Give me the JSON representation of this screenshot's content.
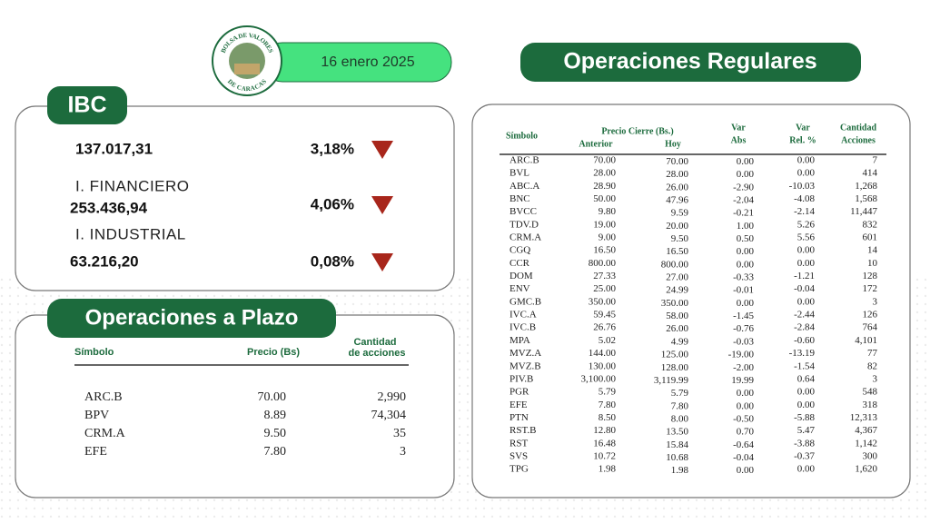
{
  "logo": {
    "top": "BOLSA DE VALORES",
    "bottom": "DE CARACAS"
  },
  "date": "16 enero 2025",
  "ibc": {
    "title": "IBC",
    "rows": [
      {
        "value": "137.017,31",
        "change": "3,18%"
      },
      {
        "label": "I. FINANCIERO",
        "value": "253.436,94",
        "change": "4,06%"
      },
      {
        "label": "I. INDUSTRIAL",
        "value": "63.216,20",
        "change": "0,08%"
      }
    ]
  },
  "plazo": {
    "title": "Operaciones a Plazo",
    "headers": [
      "Símbolo",
      "Precio (Bs)",
      "Cantidad",
      "de acciones"
    ],
    "rows": [
      [
        "ARC.B",
        "70.00",
        "2,990"
      ],
      [
        "BPV",
        "8.89",
        "74,304"
      ],
      [
        "CRM.A",
        "9.50",
        "35"
      ],
      [
        "EFE",
        "7.80",
        "3"
      ]
    ]
  },
  "regulares": {
    "title": "Operaciones Regulares",
    "headers": {
      "symbol": "Símbolo",
      "price": "Precio Cierre (Bs.)",
      "prev": "Anterior",
      "today": "Hoy",
      "abs": [
        "Var",
        "Abs"
      ],
      "rel": [
        "Var",
        "Rel. %"
      ],
      "qty": [
        "Cantidad",
        "Acciones"
      ]
    },
    "rows": [
      [
        "ARC.B",
        "70.00",
        "70.00",
        "0.00",
        "0.00",
        "7"
      ],
      [
        "BVL",
        "28.00",
        "28.00",
        "0.00",
        "0.00",
        "414"
      ],
      [
        "ABC.A",
        "28.90",
        "26.00",
        "-2.90",
        "-10.03",
        "1,268"
      ],
      [
        "BNC",
        "50.00",
        "47.96",
        "-2.04",
        "-4.08",
        "1,568"
      ],
      [
        "BVCC",
        "9.80",
        "9.59",
        "-0.21",
        "-2.14",
        "11,447"
      ],
      [
        "TDV.D",
        "19.00",
        "20.00",
        "1.00",
        "5.26",
        "832"
      ],
      [
        "CRM.A",
        "9.00",
        "9.50",
        "0.50",
        "5.56",
        "601"
      ],
      [
        "CGQ",
        "16.50",
        "16.50",
        "0.00",
        "0.00",
        "14"
      ],
      [
        "CCR",
        "800.00",
        "800.00",
        "0.00",
        "0.00",
        "10"
      ],
      [
        "DOM",
        "27.33",
        "27.00",
        "-0.33",
        "-1.21",
        "128"
      ],
      [
        "ENV",
        "25.00",
        "24.99",
        "-0.01",
        "-0.04",
        "172"
      ],
      [
        "GMC.B",
        "350.00",
        "350.00",
        "0.00",
        "0.00",
        "3"
      ],
      [
        "IVC.A",
        "59.45",
        "58.00",
        "-1.45",
        "-2.44",
        "126"
      ],
      [
        "IVC.B",
        "26.76",
        "26.00",
        "-0.76",
        "-2.84",
        "764"
      ],
      [
        "MPA",
        "5.02",
        "4.99",
        "-0.03",
        "-0.60",
        "4,101"
      ],
      [
        "MVZ.A",
        "144.00",
        "125.00",
        "-19.00",
        "-13.19",
        "77"
      ],
      [
        "MVZ.B",
        "130.00",
        "128.00",
        "-2.00",
        "-1.54",
        "82"
      ],
      [
        "PIV.B",
        "3,100.00",
        "3,119.99",
        "19.99",
        "0.64",
        "3"
      ],
      [
        "PGR",
        "5.79",
        "5.79",
        "0.00",
        "0.00",
        "548"
      ],
      [
        "EFE",
        "7.80",
        "7.80",
        "0.00",
        "0.00",
        "318"
      ],
      [
        "PTN",
        "8.50",
        "8.00",
        "-0.50",
        "-5.88",
        "12,313"
      ],
      [
        "RST.B",
        "12.80",
        "13.50",
        "0.70",
        "5.47",
        "4,367"
      ],
      [
        "RST",
        "16.48",
        "15.84",
        "-0.64",
        "-3.88",
        "1,142"
      ],
      [
        "SVS",
        "10.72",
        "10.68",
        "-0.04",
        "-0.37",
        "300"
      ],
      [
        "TPG",
        "1.98",
        "1.98",
        "0.00",
        "0.00",
        "1,620"
      ]
    ]
  }
}
